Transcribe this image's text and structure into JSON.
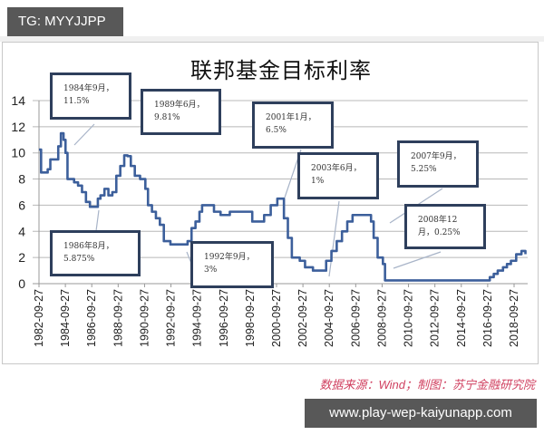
{
  "watermark_top": "TG: MYYJJPP",
  "watermark_bottom": "www.play-wep-kaiyunapp.com",
  "source_note": "数据来源：Wind；制图：苏宁金融研究院",
  "chart_data": {
    "type": "line",
    "title": "联邦基金目标利率",
    "xlabel": "",
    "ylabel": "",
    "ylim": [
      0,
      14
    ],
    "yticks": [
      "0",
      "2",
      "4",
      "6",
      "8",
      "10",
      "12",
      "14"
    ],
    "xticks": [
      "1982-09-27",
      "1984-09-27",
      "1986-09-27",
      "1988-09-27",
      "1990-09-27",
      "1992-09-27",
      "1994-09-27",
      "1996-09-27",
      "1998-09-27",
      "2000-09-27",
      "2002-09-27",
      "2004-09-27",
      "2006-09-27",
      "2008-09-27",
      "2010-09-27",
      "2012-09-27",
      "2014-09-27",
      "2016-09-27",
      "2018-09-27"
    ],
    "grid": true,
    "legend": "none",
    "line_color": "#3c5f9b",
    "series": [
      {
        "name": "联邦基金目标利率",
        "x": [
          1982.74,
          1982.9,
          1983.1,
          1983.4,
          1983.6,
          1983.9,
          1984.2,
          1984.4,
          1984.6,
          1984.75,
          1984.9,
          1985.1,
          1985.4,
          1985.7,
          1986.0,
          1986.3,
          1986.6,
          1986.9,
          1987.2,
          1987.4,
          1987.7,
          1988.0,
          1988.3,
          1988.6,
          1988.9,
          1989.2,
          1989.45,
          1989.7,
          1990.0,
          1990.4,
          1990.8,
          1991.0,
          1991.3,
          1991.6,
          1991.9,
          1992.2,
          1992.7,
          1993.5,
          1994.0,
          1994.3,
          1994.6,
          1994.9,
          1995.1,
          1995.5,
          1996.0,
          1996.5,
          1997.2,
          1997.8,
          1998.5,
          1998.9,
          1999.4,
          1999.8,
          2000.3,
          2000.8,
          2001.0,
          2001.3,
          2001.6,
          2001.9,
          2002.5,
          2002.9,
          2003.5,
          2004.0,
          2004.5,
          2004.9,
          2005.3,
          2005.7,
          2006.1,
          2006.5,
          2007.0,
          2007.6,
          2007.9,
          2008.1,
          2008.4,
          2008.8,
          2008.96,
          2010.0,
          2012.0,
          2014.0,
          2015.9,
          2016.9,
          2017.2,
          2017.5,
          2017.9,
          2018.2,
          2018.5,
          2018.9,
          2019.3,
          2019.6
        ],
        "values": [
          10.25,
          8.5,
          8.5,
          8.75,
          9.5,
          9.5,
          10.5,
          11.5,
          11.0,
          10.0,
          8.0,
          8.0,
          7.75,
          7.5,
          7.0,
          6.25,
          5.875,
          5.875,
          6.5,
          6.75,
          7.25,
          6.75,
          7.0,
          8.25,
          9.0,
          9.81,
          9.75,
          9.0,
          8.25,
          8.0,
          7.25,
          6.0,
          5.5,
          5.0,
          4.5,
          3.25,
          3.0,
          3.0,
          3.25,
          4.25,
          4.75,
          5.5,
          6.0,
          6.0,
          5.5,
          5.25,
          5.5,
          5.5,
          5.5,
          4.75,
          4.75,
          5.25,
          6.0,
          6.5,
          6.5,
          5.0,
          3.5,
          2.0,
          1.75,
          1.25,
          1.0,
          1.0,
          1.75,
          2.5,
          3.25,
          4.0,
          4.75,
          5.25,
          5.25,
          5.25,
          4.75,
          3.5,
          2.0,
          1.5,
          0.25,
          0.25,
          0.25,
          0.25,
          0.25,
          0.5,
          0.75,
          1.0,
          1.25,
          1.5,
          1.75,
          2.25,
          2.5,
          2.25
        ]
      }
    ],
    "annotations": [
      {
        "line1": "1984年9月，",
        "line2": "11.5%"
      },
      {
        "line1": "1989年6月，",
        "line2": "9.81%"
      },
      {
        "line1": "2001年1月，",
        "line2": "6.5%"
      },
      {
        "line1": "2003年6月，",
        "line2": "1%"
      },
      {
        "line1": "2007年9月，",
        "line2": "5.25%"
      },
      {
        "line1": "1986年8月，",
        "line2": "5.875%"
      },
      {
        "line1": "1992年9月，",
        "line2": "3%"
      },
      {
        "line1": "2008年12",
        "line2": "月，0.25%"
      }
    ]
  }
}
